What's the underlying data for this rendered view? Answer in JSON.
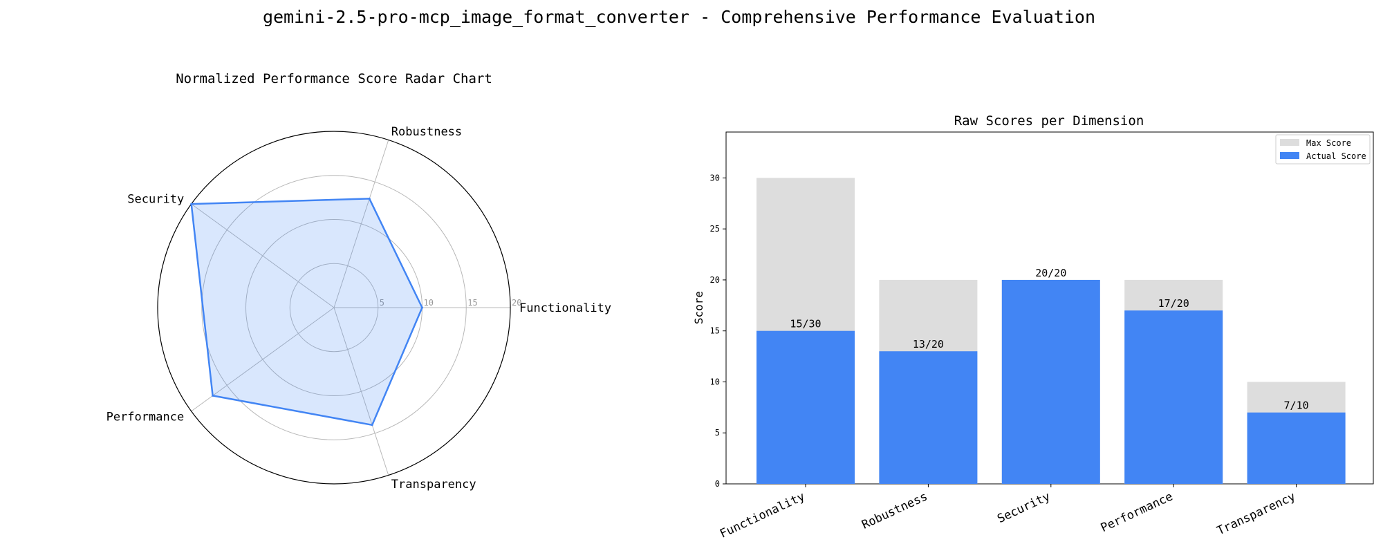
{
  "figure": {
    "title": "gemini-2.5-pro-mcp_image_format_converter - Comprehensive Performance Evaluation"
  },
  "chart_data": [
    {
      "type": "radar",
      "title": "Normalized Performance Score Radar Chart",
      "axes": [
        "Functionality",
        "Robustness",
        "Security",
        "Performance",
        "Transparency"
      ],
      "values": [
        10,
        13,
        20,
        17,
        14
      ],
      "rlim": [
        0,
        20
      ],
      "rticks": [
        5,
        10,
        15,
        20
      ],
      "rtick_labels": [
        "5",
        "10",
        "15",
        "20"
      ],
      "grid": true,
      "colors": {
        "line": "#4285f4",
        "fill": "#4285f4",
        "grid": "#b8b8b8"
      }
    },
    {
      "type": "bar",
      "title": "Raw Scores per Dimension",
      "categories": [
        "Functionality",
        "Robustness",
        "Security",
        "Performance",
        "Transparency"
      ],
      "series": [
        {
          "name": "Max Score",
          "values": [
            30,
            20,
            20,
            20,
            10
          ],
          "color": "#dddddd"
        },
        {
          "name": "Actual Score",
          "values": [
            15,
            13,
            20,
            17,
            7
          ],
          "color": "#4285f4"
        }
      ],
      "data_labels": [
        "15/30",
        "13/20",
        "20/20",
        "17/20",
        "7/10"
      ],
      "ylabel": "Score",
      "xlabel": "",
      "ylim": [
        0,
        34.5
      ],
      "yticks": [
        0,
        5,
        10,
        15,
        20,
        25,
        30
      ],
      "legend": "top-right",
      "grid": false
    }
  ]
}
